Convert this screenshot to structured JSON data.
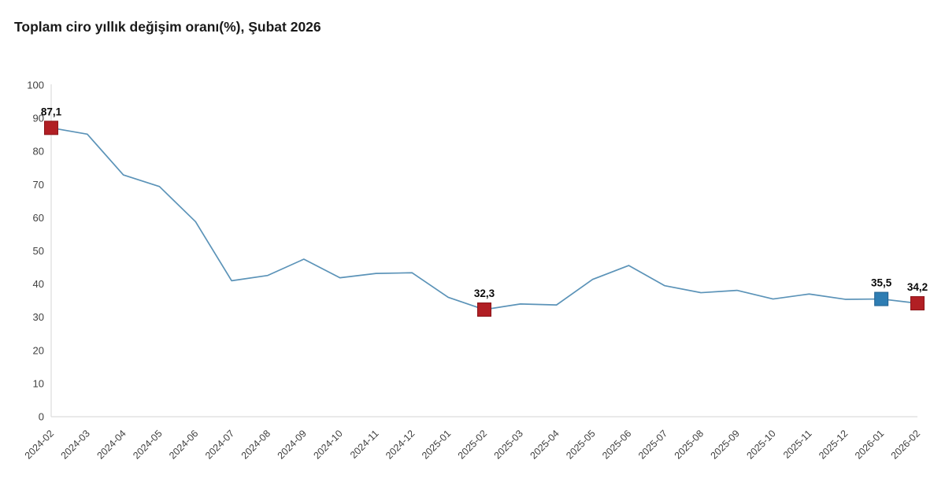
{
  "header": {
    "title": "Toplam ciro yıllık değişim oranı(%), Şubat 2026"
  },
  "chart_data": {
    "type": "line",
    "title": "Toplam ciro yıllık değişim oranı(%), Şubat 2026",
    "categories": [
      "2024-02",
      "2024-03",
      "2024-04",
      "2024-05",
      "2024-06",
      "2024-07",
      "2024-08",
      "2024-09",
      "2024-10",
      "2024-11",
      "2024-12",
      "2025-01",
      "2025-02",
      "2025-03",
      "2025-04",
      "2025-05",
      "2025-06",
      "2025-07",
      "2025-08",
      "2025-09",
      "2025-10",
      "2025-11",
      "2025-12",
      "2026-01",
      "2026-02"
    ],
    "series": [
      {
        "name": "Toplam ciro yıllık değişim oranı (%)",
        "values": [
          87.1,
          85.2,
          72.9,
          69.4,
          58.8,
          41.0,
          42.6,
          47.5,
          41.9,
          43.2,
          43.4,
          36.0,
          32.3,
          34.0,
          33.7,
          41.4,
          45.6,
          39.5,
          37.4,
          38.1,
          35.5,
          37.0,
          35.4,
          35.5,
          34.2
        ]
      }
    ],
    "ylim": [
      0,
      100
    ],
    "ytick_step": 10,
    "ytick_labels": [
      "0",
      "10",
      "20",
      "30",
      "40",
      "50",
      "60",
      "70",
      "80",
      "90",
      "100"
    ],
    "grid": false,
    "legend": "none",
    "xlabel": "",
    "ylabel": "",
    "annotations": [
      {
        "index": 0,
        "label": "87,1",
        "marker": "square",
        "fill": "#b11f24",
        "border": "#8a1519"
      },
      {
        "index": 12,
        "label": "32,3",
        "marker": "square",
        "fill": "#b11f24",
        "border": "#8a1519"
      },
      {
        "index": 23,
        "label": "35,5",
        "marker": "square",
        "fill": "#2e7db3",
        "border": "#20608f"
      },
      {
        "index": 24,
        "label": "34,2",
        "marker": "square",
        "fill": "#b11f24",
        "border": "#8a1519"
      }
    ],
    "colors": {
      "line": "#5b93b8",
      "axis": "#dcdcdc",
      "tick_label": "#3f3f3f",
      "annotation_label": "#0a0a0a",
      "title": "#1a1a1a",
      "background": "#ffffff"
    }
  }
}
